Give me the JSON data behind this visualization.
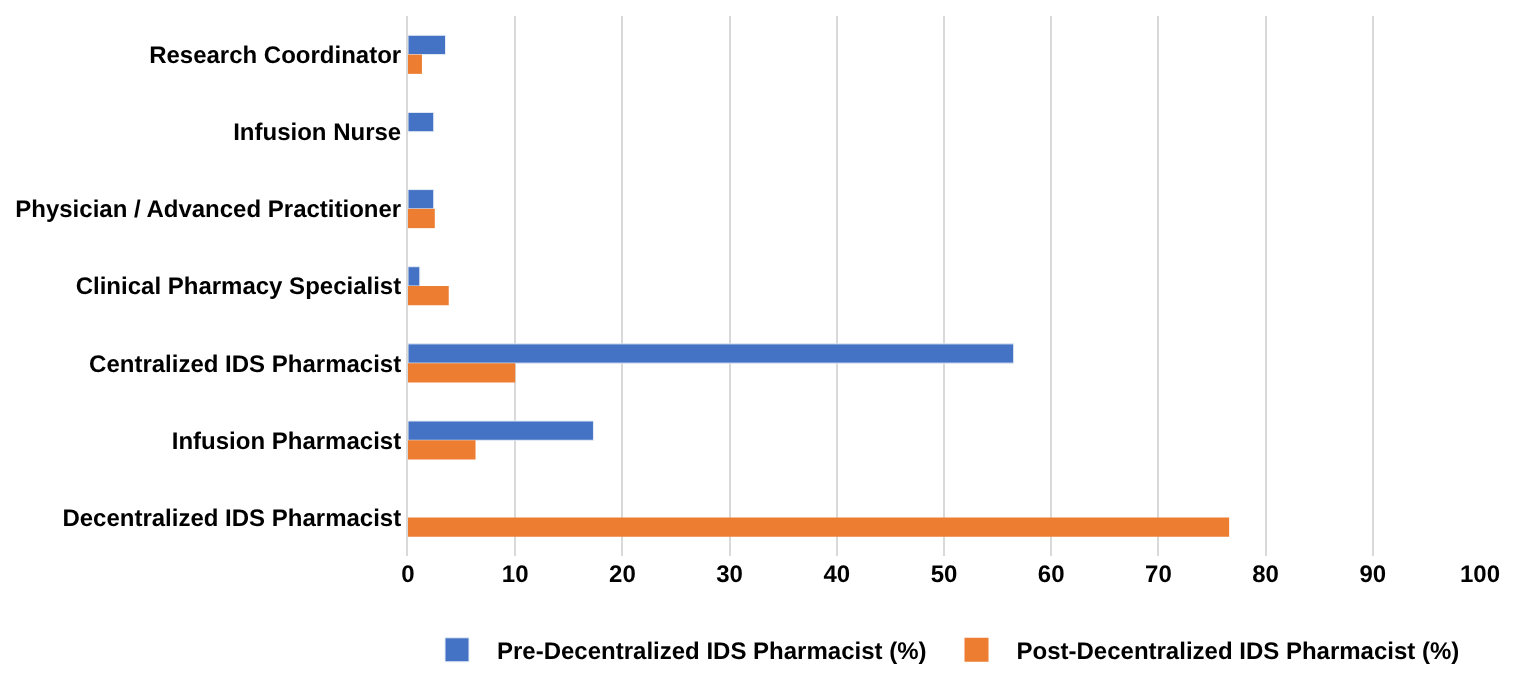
{
  "chart_data": {
    "type": "bar",
    "orientation": "horizontal",
    "categories": [
      "Research Coordinator",
      "Infusion Nurse",
      "Physician / Advanced Practitioner",
      "Clinical Pharmacy Specialist",
      "Centralized IDS Pharmacist",
      "Infusion Pharmacist",
      "Decentralized IDS Pharmacist"
    ],
    "series": [
      {
        "name": "Pre-Decentralized IDS Pharmacist (%)",
        "color": "#4472c4",
        "values": [
          3.5,
          2.4,
          2.4,
          1.1,
          56.5,
          17.3,
          null
        ]
      },
      {
        "name": "Post-Decentralized IDS Pharmacist (%)",
        "color": "#ed7d31",
        "values": [
          1.3,
          null,
          2.5,
          3.8,
          10.0,
          6.3,
          76.6
        ]
      }
    ],
    "xlim": [
      0,
      100
    ],
    "xticks": [
      0,
      10,
      20,
      30,
      40,
      50,
      60,
      70,
      80,
      90,
      100
    ],
    "grid": "x",
    "legend": "bottom"
  }
}
